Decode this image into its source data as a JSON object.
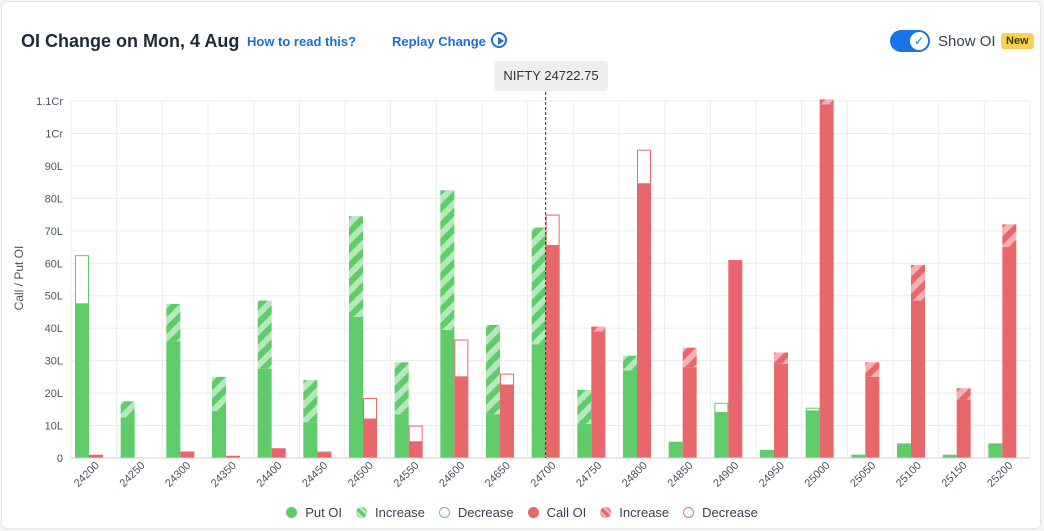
{
  "header": {
    "title": "OI Change on Mon, 4 Aug",
    "how_to_read": "How to read this?",
    "replay": "Replay Change",
    "show_oi": "Show OI",
    "new_badge": "New"
  },
  "spot_label": "NIFTY 24722.75",
  "colors": {
    "put": "#5fcb6a",
    "put_light": "#b5e8bb",
    "call": "#e8676a",
    "call_light": "#f4b1b2",
    "accent": "#1a73e8"
  },
  "legend": [
    {
      "label": "Put OI",
      "style": "put-solid"
    },
    {
      "label": "Increase",
      "style": "put-hatch"
    },
    {
      "label": "Decrease",
      "style": "put-hollow"
    },
    {
      "label": "Call OI",
      "style": "call-solid"
    },
    {
      "label": "Increase",
      "style": "call-hatch"
    },
    {
      "label": "Decrease",
      "style": "call-hollow"
    }
  ],
  "chart_data": {
    "type": "bar",
    "ylabel": "Call / Put OI",
    "ylim": [
      0,
      110
    ],
    "yticks": [
      {
        "v": 0,
        "label": "0"
      },
      {
        "v": 10,
        "label": "10L"
      },
      {
        "v": 20,
        "label": "20L"
      },
      {
        "v": 30,
        "label": "30L"
      },
      {
        "v": 40,
        "label": "40L"
      },
      {
        "v": 50,
        "label": "50L"
      },
      {
        "v": 60,
        "label": "60L"
      },
      {
        "v": 70,
        "label": "70L"
      },
      {
        "v": 80,
        "label": "80L"
      },
      {
        "v": 90,
        "label": "90L"
      },
      {
        "v": 100,
        "label": "1Cr"
      },
      {
        "v": 110,
        "label": "1.1Cr"
      }
    ],
    "spot_marker": {
      "after_strike": "24700",
      "value": 24722.75
    },
    "categories": [
      "24200",
      "24250",
      "24300",
      "24350",
      "24400",
      "24450",
      "24500",
      "24550",
      "24600",
      "24650",
      "24700",
      "24750",
      "24800",
      "24850",
      "24900",
      "24950",
      "25000",
      "25050",
      "25100",
      "25150",
      "25200"
    ],
    "series": [
      {
        "name": "Put OI",
        "base": [
          47.5,
          12.5,
          36,
          14.5,
          27.5,
          11,
          43.5,
          13.5,
          39.5,
          13.5,
          35,
          10.5,
          27,
          5,
          14,
          2.5,
          14.5,
          1,
          4.5,
          1,
          4.5
        ],
        "change": [
          -15,
          5,
          11.5,
          10.5,
          21,
          13,
          31,
          16,
          43,
          27.5,
          36,
          10.5,
          4.5,
          0,
          -3,
          0,
          -1,
          0,
          0,
          0,
          0
        ]
      },
      {
        "name": "Call OI",
        "base": [
          1,
          0,
          2,
          0.7,
          3,
          1.5,
          12,
          5,
          25,
          22.5,
          65.5,
          39,
          84.5,
          28,
          61,
          29,
          109,
          25,
          48.5,
          18,
          65
        ],
        "change": [
          0,
          0,
          0,
          0,
          0,
          -0.5,
          -6.5,
          -5,
          -11.5,
          -3.5,
          -9.5,
          1.5,
          -10.5,
          6,
          0,
          3.5,
          1.5,
          4.5,
          11,
          3.5,
          7
        ]
      }
    ]
  }
}
